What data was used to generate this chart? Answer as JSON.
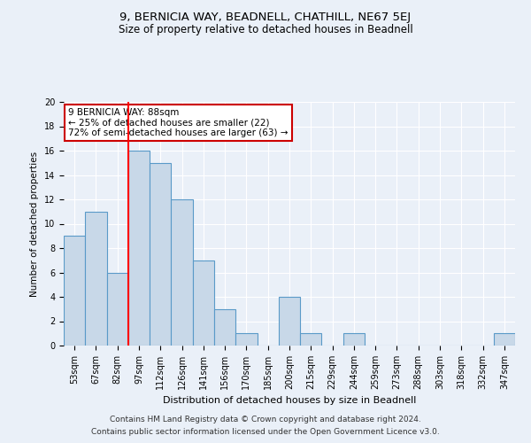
{
  "title": "9, BERNICIA WAY, BEADNELL, CHATHILL, NE67 5EJ",
  "subtitle": "Size of property relative to detached houses in Beadnell",
  "xlabel": "Distribution of detached houses by size in Beadnell",
  "ylabel": "Number of detached properties",
  "categories": [
    "53sqm",
    "67sqm",
    "82sqm",
    "97sqm",
    "112sqm",
    "126sqm",
    "141sqm",
    "156sqm",
    "170sqm",
    "185sqm",
    "200sqm",
    "215sqm",
    "229sqm",
    "244sqm",
    "259sqm",
    "273sqm",
    "288sqm",
    "303sqm",
    "318sqm",
    "332sqm",
    "347sqm"
  ],
  "values": [
    9,
    11,
    6,
    16,
    15,
    12,
    7,
    3,
    1,
    0,
    4,
    1,
    0,
    1,
    0,
    0,
    0,
    0,
    0,
    0,
    1
  ],
  "bar_color": "#c8d8e8",
  "bar_edge_color": "#5a9ac8",
  "red_line_index": 2,
  "annotation_text": "9 BERNICIA WAY: 88sqm\n← 25% of detached houses are smaller (22)\n72% of semi-detached houses are larger (63) →",
  "annotation_box_color": "#ffffff",
  "annotation_box_edge": "#cc0000",
  "ylim": [
    0,
    20
  ],
  "yticks": [
    0,
    2,
    4,
    6,
    8,
    10,
    12,
    14,
    16,
    18,
    20
  ],
  "background_color": "#eaf0f8",
  "grid_color": "#ffffff",
  "footer_line1": "Contains HM Land Registry data © Crown copyright and database right 2024.",
  "footer_line2": "Contains public sector information licensed under the Open Government Licence v3.0.",
  "title_fontsize": 9.5,
  "subtitle_fontsize": 8.5,
  "xlabel_fontsize": 8,
  "ylabel_fontsize": 7.5,
  "tick_fontsize": 7,
  "footer_fontsize": 6.5,
  "annotation_fontsize": 7.5
}
